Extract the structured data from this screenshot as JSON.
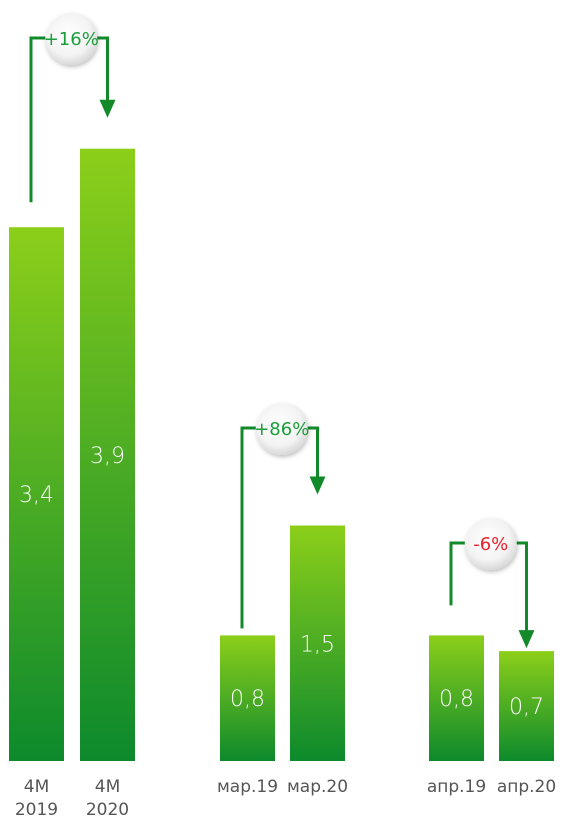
{
  "chart_data": {
    "type": "bar",
    "title": "",
    "xlabel": "",
    "ylabel": "",
    "categories": [
      [
        "4M",
        "2019"
      ],
      [
        "4M",
        "2020"
      ],
      [
        "мар.19"
      ],
      [
        "мар.20"
      ],
      [
        "апр.19"
      ],
      [
        "апр.20"
      ]
    ],
    "values": [
      3.4,
      3.9,
      0.8,
      1.5,
      0.8,
      0.7
    ],
    "value_labels": [
      "3,4",
      "3,9",
      "0,8",
      "1,5",
      "0,8",
      "0,7"
    ],
    "groups": [
      {
        "bars": [
          0,
          1
        ],
        "change": "+16%",
        "change_color": "#1a9e3a"
      },
      {
        "bars": [
          2,
          3
        ],
        "change": "+86%",
        "change_color": "#1a9e3a"
      },
      {
        "bars": [
          4,
          5
        ],
        "change": "-6%",
        "change_color": "#e8212b"
      }
    ],
    "colors": {
      "bar_top": "#8ccf1a",
      "bar_bottom": "#0d8a2c",
      "arrow": "#138a2a"
    }
  }
}
